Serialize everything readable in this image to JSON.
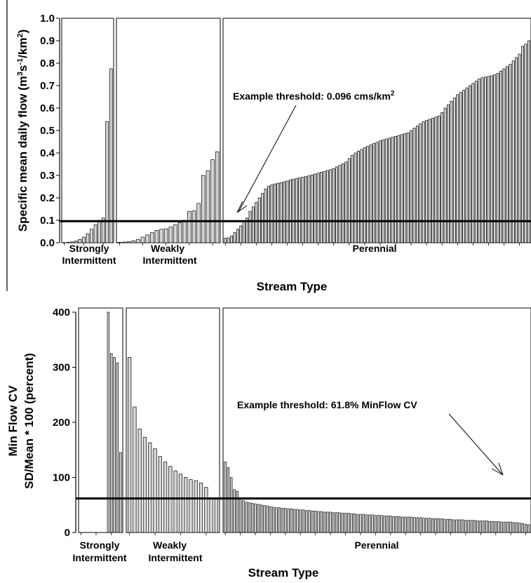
{
  "charts": [
    {
      "type": "bar",
      "ylabel_prefix": "Specific mean daily flow (m",
      "ylabel_sup1": "3",
      "ylabel_mid1": "s",
      "ylabel_sup2": "-1",
      "ylabel_mid2": "/km",
      "ylabel_sup3": "2",
      "ylabel_suffix": ")",
      "xlabel": "Stream Type",
      "ylim": [
        0,
        1.0
      ],
      "yticks": [
        "0.0",
        "0.1",
        "0.2",
        "0.3",
        "0.4",
        "0.5",
        "0.6",
        "0.7",
        "0.8",
        "0.9",
        "1.0"
      ],
      "threshold": 0.096,
      "annotation": "Example threshold: 0.096 cms/km",
      "annotation_sup": "2",
      "groups": [
        {
          "line1": "Strongly",
          "line2": "Intermittent",
          "values": [
            0.001,
            0.002,
            0.004,
            0.008,
            0.015,
            0.025,
            0.04,
            0.06,
            0.08,
            0.1,
            0.11,
            0.54,
            0.775
          ]
        },
        {
          "line1": "Weakly",
          "line2": "Intermittent",
          "values": [
            0.002,
            0.003,
            0.005,
            0.009,
            0.015,
            0.025,
            0.035,
            0.045,
            0.055,
            0.06,
            0.062,
            0.07,
            0.08,
            0.09,
            0.1,
            0.14,
            0.142,
            0.175,
            0.3,
            0.32,
            0.37,
            0.405
          ]
        },
        {
          "line1": "Perennial",
          "line2": "",
          "values": [
            0.02,
            0.022,
            0.03,
            0.045,
            0.06,
            0.075,
            0.095,
            0.11,
            0.14,
            0.16,
            0.18,
            0.2,
            0.22,
            0.24,
            0.252,
            0.258,
            0.262,
            0.265,
            0.268,
            0.272,
            0.275,
            0.28,
            0.283,
            0.286,
            0.289,
            0.292,
            0.295,
            0.298,
            0.302,
            0.306,
            0.31,
            0.314,
            0.318,
            0.322,
            0.326,
            0.33,
            0.338,
            0.345,
            0.352,
            0.36,
            0.375,
            0.39,
            0.4,
            0.408,
            0.416,
            0.424,
            0.43,
            0.436,
            0.442,
            0.448,
            0.454,
            0.458,
            0.462,
            0.466,
            0.47,
            0.474,
            0.478,
            0.482,
            0.486,
            0.49,
            0.5,
            0.51,
            0.52,
            0.53,
            0.54,
            0.545,
            0.55,
            0.555,
            0.56,
            0.565,
            0.58,
            0.6,
            0.615,
            0.63,
            0.645,
            0.66,
            0.67,
            0.68,
            0.69,
            0.7,
            0.71,
            0.72,
            0.73,
            0.735,
            0.738,
            0.741,
            0.744,
            0.748,
            0.755,
            0.765,
            0.775,
            0.785,
            0.795,
            0.81,
            0.825,
            0.84,
            0.875,
            0.885,
            0.9
          ]
        }
      ]
    },
    {
      "type": "bar",
      "ylabel_line1": "Min Flow CV",
      "ylabel_line2": "SD/Mean * 100 (percent)",
      "xlabel": "Stream Type",
      "ylim": [
        0,
        400
      ],
      "yticks": [
        "0",
        "100",
        "200",
        "300",
        "400"
      ],
      "threshold": 61.8,
      "annotation": "Example threshold: 61.8% MinFlow CV",
      "groups": [
        {
          "line1": "Strongly",
          "line2": "Intermittent",
          "values": [
            0,
            0,
            0,
            0,
            0,
            0,
            0,
            0,
            0,
            400,
            325,
            318,
            308,
            145
          ]
        },
        {
          "line1": "Weakly",
          "line2": "Intermittent",
          "values": [
            318,
            228,
            188,
            173,
            163,
            152,
            138,
            128,
            120,
            112,
            106,
            100,
            96,
            94,
            90,
            82,
            62,
            62
          ]
        },
        {
          "line1": "Perennial",
          "line2": "",
          "values": [
            128,
            118,
            100,
            78,
            75,
            62,
            58,
            55,
            54,
            53,
            52,
            51,
            50,
            49,
            48,
            47,
            46,
            45,
            45,
            44,
            44,
            43,
            43,
            42,
            42,
            41,
            41,
            40,
            40,
            39,
            39,
            38,
            38,
            37,
            37,
            37,
            36,
            36,
            36,
            35,
            35,
            35,
            34,
            34,
            33,
            33,
            33,
            32,
            32,
            32,
            31,
            31,
            31,
            30,
            30,
            30,
            29,
            29,
            29,
            28,
            28,
            28,
            28,
            27,
            27,
            27,
            26,
            26,
            26,
            25,
            25,
            25,
            25,
            24,
            24,
            24,
            23,
            23,
            23,
            23,
            22,
            22,
            22,
            22,
            21,
            21,
            21,
            21,
            20,
            20,
            20,
            20,
            19,
            19,
            19,
            19,
            18,
            18,
            17,
            16,
            15,
            14
          ]
        }
      ]
    }
  ]
}
